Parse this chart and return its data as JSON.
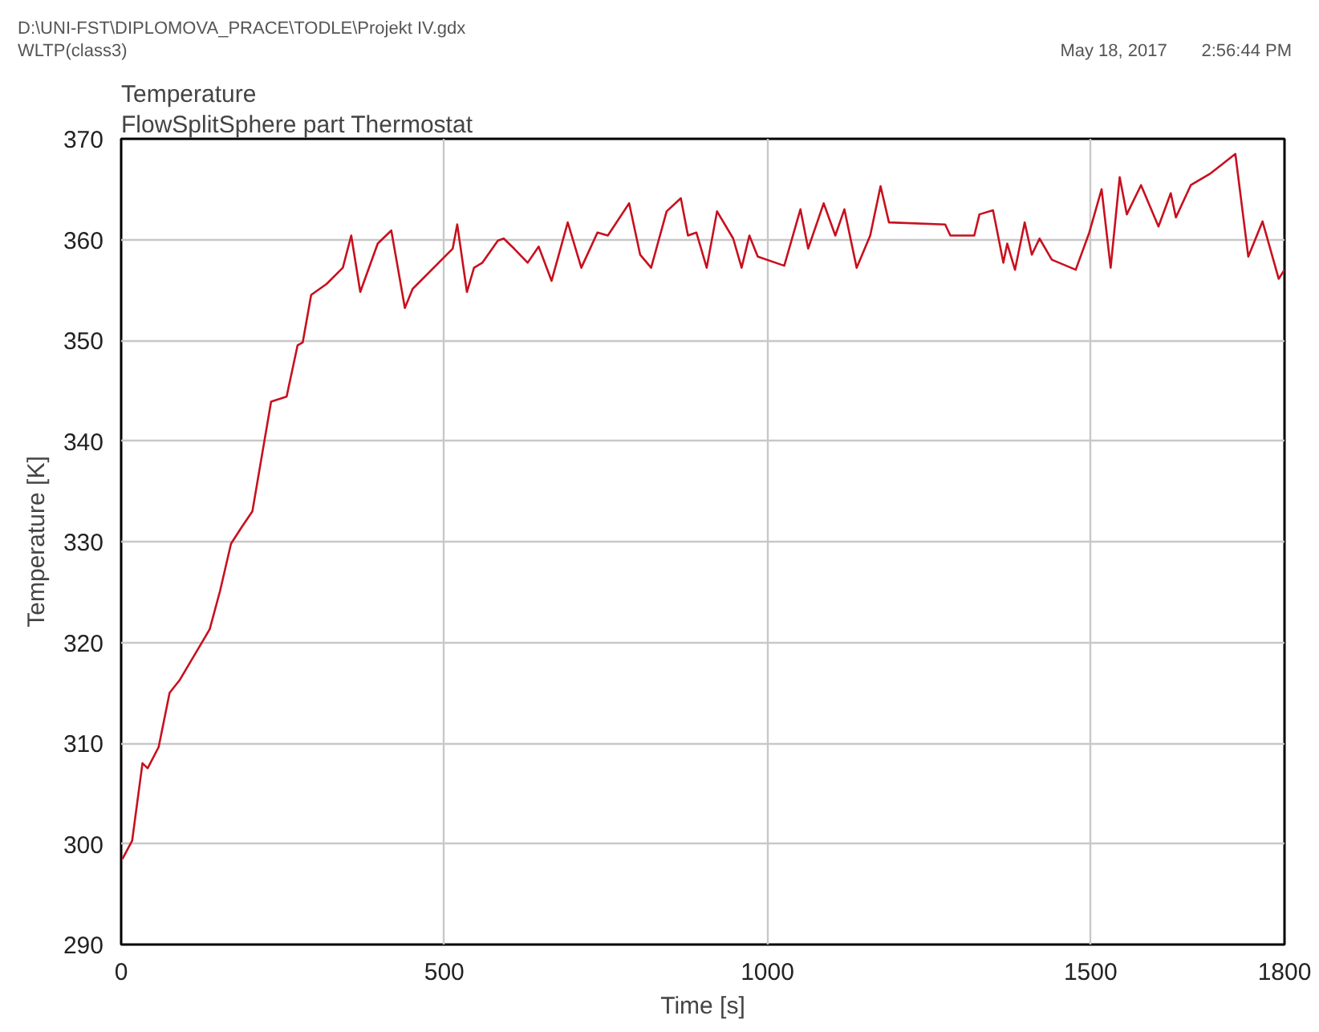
{
  "chart_data": {
    "type": "line",
    "title": "Temperature",
    "subtitle": "FlowSplitSphere part Thermostat",
    "xlabel": "Time [s]",
    "ylabel": "Temperature [K]",
    "annotations": [
      "D:\\UNI-FST\\DIPLOMOVA_PRACE\\TODLE\\Projekt IV.gdx",
      "WLTP(class3)",
      "May 18, 2017",
      "2:56:44 PM"
    ],
    "xlim": [
      0,
      1800
    ],
    "xticks": [
      0,
      500,
      1000,
      1500,
      1800
    ],
    "ylim": [
      290,
      370
    ],
    "yticks": [
      290,
      300,
      310,
      320,
      330,
      340,
      350,
      360,
      370
    ],
    "grid": true,
    "marker": "none",
    "line_style": "solid",
    "series": [
      {
        "color": "#c8101e",
        "x": [
          2,
          17,
          33,
          41,
          58,
          75,
          91,
          137,
          153,
          170,
          186,
          203,
          232,
          256,
          273,
          281,
          294,
          318,
          343,
          356,
          370,
          397,
          418,
          439,
          451,
          513,
          520,
          535,
          546,
          559,
          583,
          592,
          608,
          629,
          646,
          666,
          691,
          712,
          737,
          753,
          786,
          803,
          820,
          844,
          866,
          877,
          890,
          906,
          922,
          947,
          960,
          972,
          985,
          1026,
          1051,
          1063,
          1087,
          1105,
          1119,
          1138,
          1159,
          1175,
          1188,
          1275,
          1283,
          1320,
          1328,
          1349,
          1365,
          1371,
          1383,
          1398,
          1409,
          1421,
          1440,
          1477,
          1498,
          1517,
          1531,
          1545,
          1556,
          1578,
          1605,
          1624,
          1632,
          1655,
          1684,
          1724,
          1732,
          1744,
          1766,
          1791,
          1800
        ],
        "values": [
          298.5,
          300.3,
          308.0,
          307.5,
          309.6,
          315.0,
          316.3,
          321.3,
          325.1,
          329.8,
          331.4,
          333.0,
          343.9,
          344.4,
          349.5,
          349.8,
          354.5,
          355.6,
          357.2,
          360.4,
          354.8,
          359.6,
          360.9,
          353.2,
          355.1,
          359.1,
          361.5,
          354.8,
          357.2,
          357.7,
          359.9,
          360.1,
          359.1,
          357.7,
          359.3,
          355.9,
          361.7,
          357.2,
          360.7,
          360.4,
          363.6,
          358.5,
          357.2,
          362.8,
          364.1,
          360.4,
          360.7,
          357.2,
          362.8,
          360.1,
          357.2,
          360.4,
          358.3,
          357.4,
          363.0,
          359.1,
          363.6,
          360.4,
          363.0,
          357.2,
          360.4,
          365.3,
          361.7,
          361.5,
          360.4,
          360.4,
          362.5,
          362.9,
          357.7,
          359.6,
          357.0,
          361.7,
          358.5,
          360.1,
          358.0,
          357.0,
          360.7,
          365.0,
          357.2,
          366.2,
          362.5,
          365.4,
          361.3,
          364.6,
          362.2,
          365.4,
          366.5,
          368.5,
          364.4,
          358.3,
          361.8,
          356.1,
          357.0
        ]
      }
    ]
  }
}
